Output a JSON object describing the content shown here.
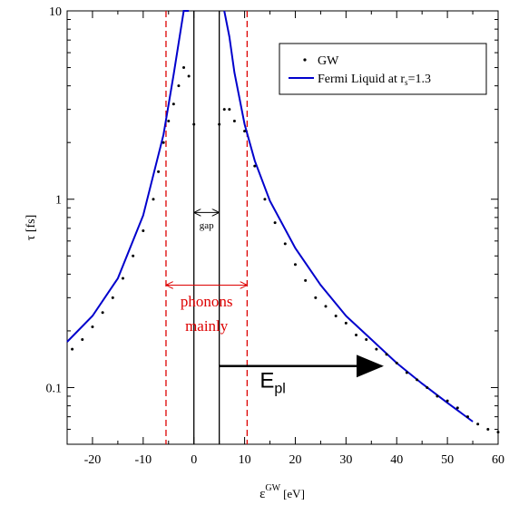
{
  "chart_data": {
    "type": "scatter",
    "xlabel": "ε",
    "xlabel_sup": "GW",
    "xlabel_unit": "[eV]",
    "ylabel": "τ [fs]",
    "xlim": [
      -25,
      60
    ],
    "ylim": [
      0.05,
      10
    ],
    "y_scale": "log",
    "x_ticks": [
      -20,
      -10,
      0,
      10,
      20,
      30,
      40,
      50,
      60
    ],
    "x_tick_labels": [
      "-20",
      "-10",
      "0",
      "10",
      "20",
      "30",
      "40",
      "50",
      "60"
    ],
    "y_ticks": [
      0.1,
      1,
      10
    ],
    "y_tick_labels": [
      "0.1",
      "1",
      "10"
    ],
    "legend": {
      "placement": "top-right",
      "entries": [
        {
          "label": "GW",
          "marker": "dot",
          "color": "#000000"
        },
        {
          "label": "Fermi Liquid at r",
          "sub": "s",
          "suffix": "=1.3",
          "marker": "line",
          "color": "#0000cc"
        }
      ]
    },
    "series": [
      {
        "name": "GW",
        "kind": "scatter",
        "color": "#000000",
        "x": [
          -24,
          -22,
          -20,
          -18,
          -16,
          -14,
          -12,
          -10,
          -8,
          -7,
          -6,
          -5,
          -4,
          -3,
          -2,
          -1,
          0,
          5,
          6,
          7,
          8,
          10,
          12,
          14,
          16,
          18,
          20,
          22,
          24,
          26,
          28,
          30,
          32,
          34,
          36,
          38,
          40,
          42,
          44,
          46,
          48,
          50,
          52,
          54,
          56,
          58,
          60
        ],
        "y": [
          0.16,
          0.18,
          0.21,
          0.25,
          0.3,
          0.38,
          0.5,
          0.68,
          1.0,
          1.4,
          2.0,
          2.6,
          3.2,
          4.0,
          5.0,
          4.5,
          2.5,
          2.5,
          3.0,
          3.0,
          2.6,
          2.3,
          1.5,
          1.0,
          0.75,
          0.58,
          0.45,
          0.37,
          0.3,
          0.27,
          0.24,
          0.22,
          0.19,
          0.18,
          0.16,
          0.15,
          0.135,
          0.12,
          0.11,
          0.1,
          0.09,
          0.085,
          0.078,
          0.07,
          0.064,
          0.06,
          0.058
        ]
      },
      {
        "name": "Fermi Liquid at r_s=1.3",
        "kind": "line",
        "color": "#0000cc",
        "curve": "tau ∝ 1/(E-E_F)^2",
        "branches": [
          {
            "x": [
              -25,
              -20,
              -15,
              -10,
              -6,
              -4,
              -2,
              -1
            ],
            "y": [
              0.175,
              0.24,
              0.38,
              0.82,
              2.2,
              4.6,
              10,
              10
            ]
          },
          {
            "x": [
              6,
              7,
              8,
              10,
              12,
              15,
              20,
              25,
              30,
              35,
              40,
              45,
              50,
              55
            ],
            "y": [
              10,
              7.3,
              4.7,
              2.5,
              1.6,
              0.98,
              0.55,
              0.35,
              0.24,
              0.18,
              0.135,
              0.105,
              0.083,
              0.066
            ]
          }
        ]
      }
    ],
    "vertical_lines": [
      {
        "x": -5.5,
        "style": "dashed",
        "color": "#dd0000"
      },
      {
        "x": 10.5,
        "style": "dashed",
        "color": "#dd0000"
      },
      {
        "x": 0,
        "style": "solid",
        "color": "#000000"
      },
      {
        "x": 5,
        "style": "solid",
        "color": "#000000"
      }
    ],
    "annotations": [
      {
        "text": "gap",
        "color": "#000000",
        "arrow": "double",
        "x_from": 0,
        "x_to": 5,
        "y": 0.85,
        "label_y": 0.7
      },
      {
        "text": "phonons",
        "text2": "mainly",
        "color": "#dd0000",
        "arrow": "double",
        "x_from": -5.5,
        "x_to": 10.5,
        "y": 0.35,
        "label_y": 0.27,
        "label2_y": 0.2
      },
      {
        "text": "E",
        "sub": "pl",
        "color": "#000000",
        "arrow": "single",
        "x_from": 5,
        "x_to": 37,
        "y": 0.13,
        "label_x": 13,
        "label_y": 0.1
      }
    ]
  }
}
